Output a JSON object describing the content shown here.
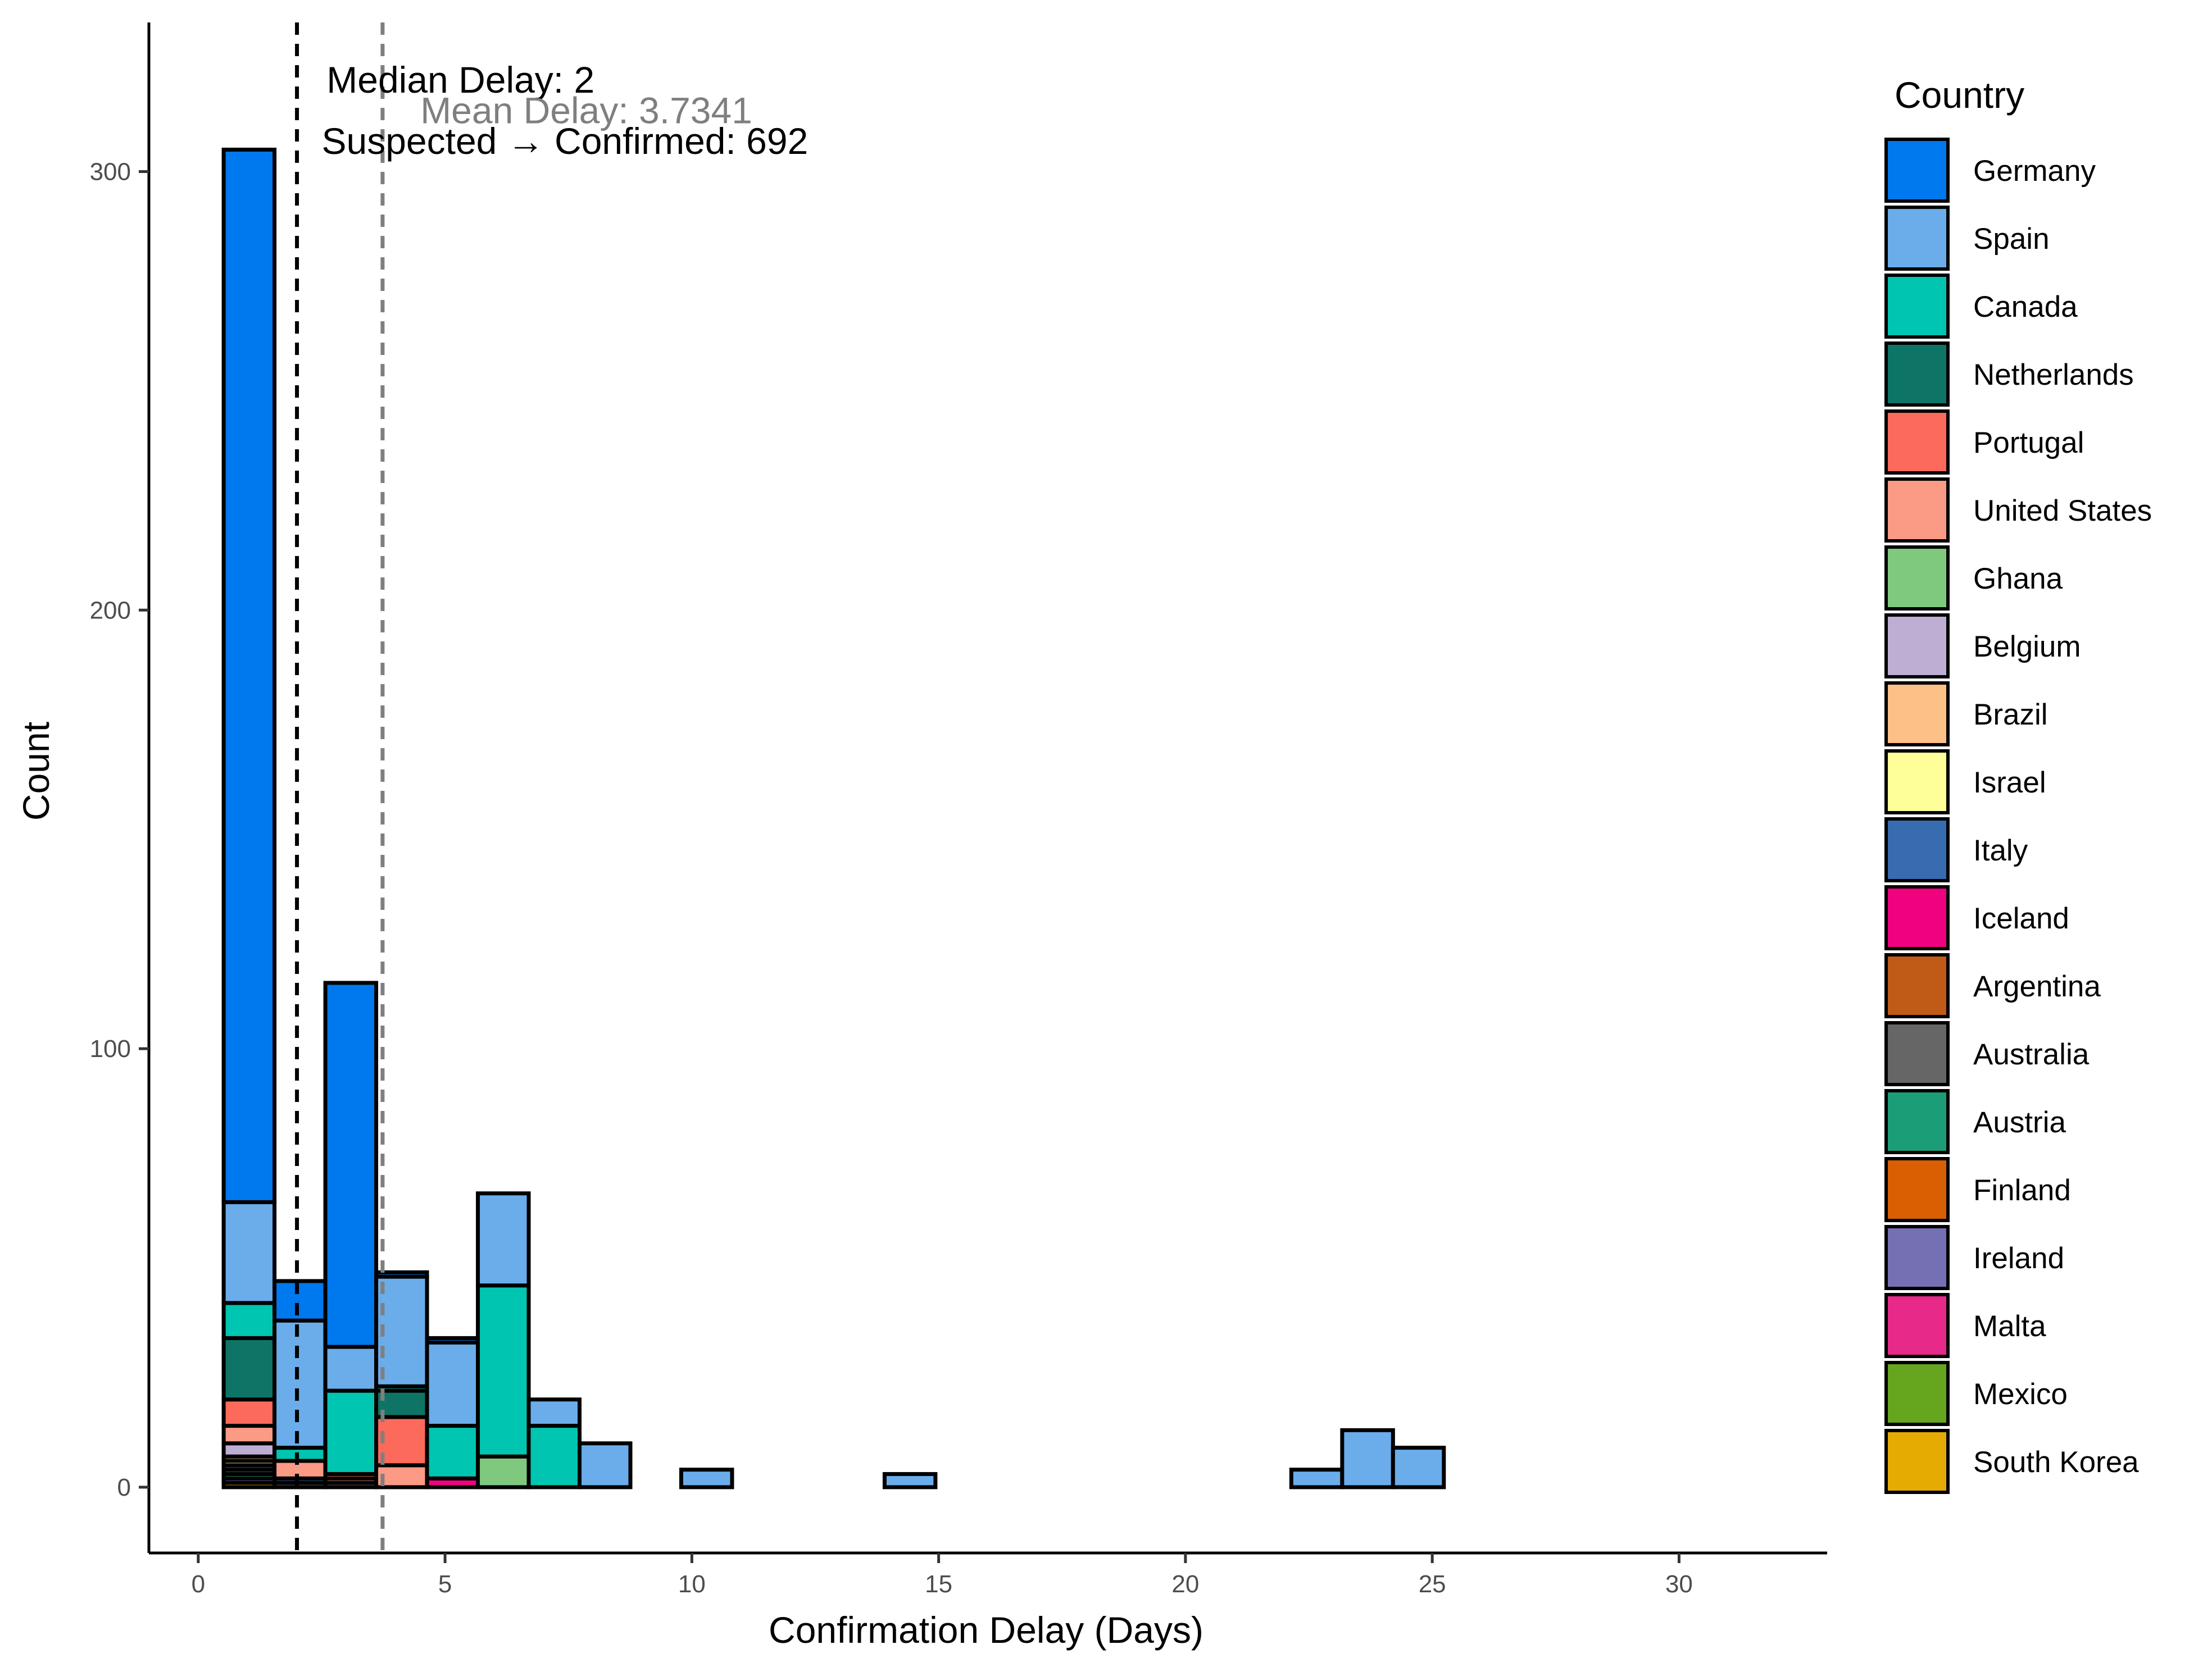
{
  "chart_data": {
    "type": "bar",
    "stacked": true,
    "xlabel": "Confirmation Delay (Days)",
    "ylabel": "Count",
    "xlim": [
      -1,
      33
    ],
    "ylim": [
      -15,
      334
    ],
    "xticks": [
      0,
      5,
      10,
      15,
      20,
      25,
      30
    ],
    "yticks": [
      0,
      100,
      200,
      300
    ],
    "bin_width": 1.03,
    "bins": [
      1.03,
      2.06,
      3.09,
      4.12,
      5.15,
      6.18,
      7.21,
      8.24,
      9.27,
      10.3,
      11.33,
      12.36,
      13.39,
      14.42,
      15.45,
      16.48,
      17.51,
      18.54,
      19.57,
      20.6,
      21.63,
      22.66,
      23.69,
      24.72,
      25.75,
      26.78,
      27.81,
      28.84,
      29.87,
      30.9
    ],
    "series": [
      {
        "name": "South Korea",
        "color": "#E6AB02",
        "values": [
          1,
          0,
          0,
          0,
          0,
          0,
          0,
          0,
          0,
          0,
          0,
          0,
          0,
          0,
          0,
          0,
          0,
          0,
          0,
          0,
          0,
          0,
          0,
          0,
          0,
          0,
          0,
          0,
          0,
          0
        ]
      },
      {
        "name": "Mexico",
        "color": "#66A61E",
        "values": [
          0,
          0,
          0,
          0,
          0,
          0,
          0,
          0,
          0,
          0,
          0,
          0,
          0,
          0,
          0,
          0,
          0,
          0,
          0,
          0,
          0,
          0,
          0,
          0,
          0,
          0,
          0,
          0,
          0,
          0
        ]
      },
      {
        "name": "Malta",
        "color": "#E7298A",
        "values": [
          0,
          0,
          0,
          0,
          0,
          0,
          0,
          0,
          0,
          0,
          0,
          0,
          0,
          0,
          0,
          0,
          0,
          0,
          0,
          0,
          0,
          0,
          0,
          0,
          0,
          0,
          0,
          0,
          0,
          0
        ]
      },
      {
        "name": "Ireland",
        "color": "#7570B3",
        "values": [
          1,
          0,
          0,
          0,
          0,
          0,
          0,
          0,
          0,
          0,
          0,
          0,
          0,
          0,
          0,
          0,
          0,
          0,
          0,
          0,
          0,
          0,
          0,
          0,
          0,
          0,
          0,
          0,
          0,
          0
        ]
      },
      {
        "name": "Finland",
        "color": "#D95F02",
        "values": [
          0,
          0,
          0,
          0,
          0,
          0,
          0,
          0,
          0,
          0,
          0,
          0,
          0,
          0,
          0,
          0,
          0,
          0,
          0,
          0,
          0,
          0,
          0,
          0,
          0,
          0,
          0,
          0,
          0,
          0
        ]
      },
      {
        "name": "Austria",
        "color": "#1B9E77",
        "values": [
          1,
          0,
          0,
          0,
          0,
          0,
          0,
          0,
          0,
          0,
          0,
          0,
          0,
          0,
          0,
          0,
          0,
          0,
          0,
          0,
          0,
          0,
          0,
          0,
          0,
          0,
          0,
          0,
          0,
          0
        ]
      },
      {
        "name": "Australia",
        "color": "#666666",
        "values": [
          1,
          1,
          1,
          0,
          0,
          0,
          0,
          0,
          0,
          0,
          0,
          0,
          0,
          0,
          0,
          0,
          0,
          0,
          0,
          0,
          0,
          0,
          0,
          0,
          0,
          0,
          0,
          0,
          0,
          0
        ]
      },
      {
        "name": "Argentina",
        "color": "#BF5B17",
        "values": [
          0,
          0,
          0,
          0,
          0,
          0,
          0,
          0,
          0,
          0,
          0,
          0,
          0,
          0,
          0,
          0,
          0,
          0,
          0,
          0,
          0,
          0,
          0,
          0,
          0,
          0,
          0,
          0,
          0,
          0
        ]
      },
      {
        "name": "Iceland",
        "color": "#F0027F",
        "values": [
          0,
          0,
          0,
          0,
          2,
          0,
          0,
          0,
          0,
          0,
          0,
          0,
          0,
          0,
          0,
          0,
          0,
          0,
          0,
          0,
          0,
          0,
          0,
          0,
          0,
          0,
          0,
          0,
          0,
          0
        ]
      },
      {
        "name": "Italy",
        "color": "#386CB0",
        "values": [
          1,
          1,
          0,
          0,
          0,
          0,
          0,
          0,
          0,
          0,
          0,
          0,
          0,
          0,
          0,
          0,
          0,
          0,
          0,
          0,
          0,
          0,
          0,
          0,
          0,
          0,
          0,
          0,
          0,
          0
        ]
      },
      {
        "name": "Israel",
        "color": "#FFFF99",
        "values": [
          1,
          0,
          0,
          0,
          0,
          0,
          0,
          0,
          0,
          0,
          0,
          0,
          0,
          0,
          0,
          0,
          0,
          0,
          0,
          0,
          0,
          0,
          0,
          0,
          0,
          0,
          0,
          0,
          0,
          0
        ]
      },
      {
        "name": "Brazil",
        "color": "#FDC086",
        "values": [
          1,
          0,
          0,
          0,
          0,
          0,
          0,
          0,
          0,
          0,
          0,
          0,
          0,
          0,
          0,
          0,
          0,
          0,
          0,
          0,
          0,
          0,
          0,
          0,
          0,
          0,
          0,
          0,
          0,
          0
        ]
      },
      {
        "name": "Belgium",
        "color": "#BEAED4",
        "values": [
          3,
          0,
          0,
          0,
          0,
          0,
          0,
          0,
          0,
          0,
          0,
          0,
          0,
          0,
          0,
          0,
          0,
          0,
          0,
          0,
          0,
          0,
          0,
          0,
          0,
          0,
          0,
          0,
          0,
          0
        ]
      },
      {
        "name": "Ghana",
        "color": "#7FC97F",
        "values": [
          0,
          0,
          0,
          0,
          0,
          7,
          0,
          0,
          0,
          0,
          0,
          0,
          0,
          0,
          0,
          0,
          0,
          0,
          0,
          0,
          0,
          0,
          0,
          0,
          0,
          0,
          0,
          0,
          0,
          0
        ]
      },
      {
        "name": "United States",
        "color": "#FB9A85",
        "values": [
          4,
          4,
          1,
          5,
          0,
          0,
          0,
          0,
          0,
          0,
          0,
          0,
          0,
          0,
          0,
          0,
          0,
          0,
          0,
          0,
          0,
          0,
          0,
          0,
          0,
          0,
          0,
          0,
          0,
          0
        ]
      },
      {
        "name": "Portugal",
        "color": "#FB6A5B",
        "values": [
          6,
          0,
          1,
          11,
          0,
          0,
          0,
          0,
          0,
          0,
          0,
          0,
          0,
          0,
          0,
          0,
          0,
          0,
          0,
          0,
          0,
          0,
          0,
          0,
          0,
          0,
          0,
          0,
          0,
          0
        ]
      },
      {
        "name": "Netherlands",
        "color": "#0E7566",
        "values": [
          14,
          0,
          0,
          6,
          0,
          0,
          0,
          0,
          0,
          0,
          0,
          0,
          0,
          0,
          0,
          0,
          0,
          0,
          0,
          0,
          0,
          0,
          0,
          0,
          0,
          0,
          0,
          0,
          0,
          0
        ]
      },
      {
        "name": "Canada",
        "color": "#00C5B0",
        "values": [
          8,
          3,
          19,
          1,
          12,
          39,
          14,
          0,
          0,
          0,
          0,
          0,
          0,
          0,
          0,
          0,
          0,
          0,
          0,
          0,
          0,
          0,
          0,
          0,
          0,
          0,
          0,
          0,
          0,
          0
        ]
      },
      {
        "name": "Spain",
        "color": "#6AADEA",
        "values": [
          23,
          29,
          10,
          25,
          19,
          21,
          6,
          10,
          0,
          4,
          0,
          0,
          0,
          3,
          0,
          0,
          0,
          0,
          0,
          0,
          0,
          4,
          13,
          9,
          0,
          0,
          0,
          0,
          0,
          0
        ]
      },
      {
        "name": "Germany",
        "color": "#0078EE",
        "values": [
          240,
          9,
          83,
          1,
          1,
          0,
          0,
          0,
          0,
          0,
          0,
          0,
          0,
          0,
          0,
          0,
          0,
          0,
          0,
          0,
          0,
          0,
          0,
          0,
          0,
          0,
          0,
          0,
          0,
          0
        ]
      }
    ],
    "vlines": [
      {
        "x": 2,
        "color": "#000000",
        "style": "dashed"
      },
      {
        "x": 3.7341,
        "color": "#7f7f7f",
        "style": "dashed"
      }
    ],
    "annotations": [
      {
        "text": "Median Delay: 2",
        "x": 2.6,
        "y": 318,
        "color": "#000000"
      },
      {
        "text": "Mean Delay: 3.7341",
        "x": 4.5,
        "y": 311,
        "color": "#7f7f7f"
      },
      {
        "text": "Suspected → Confirmed: 692",
        "x": 2.5,
        "y": 304,
        "color": "#000000"
      }
    ],
    "legend": {
      "title": "Country",
      "position": "right",
      "entries": [
        "Germany",
        "Spain",
        "Canada",
        "Netherlands",
        "Portugal",
        "United States",
        "Ghana",
        "Belgium",
        "Brazil",
        "Israel",
        "Italy",
        "Iceland",
        "Argentina",
        "Australia",
        "Austria",
        "Finland",
        "Ireland",
        "Malta",
        "Mexico",
        "South Korea"
      ]
    },
    "grid": false
  }
}
